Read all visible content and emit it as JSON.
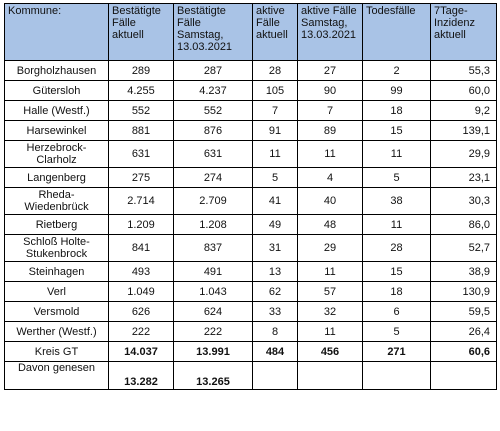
{
  "headers": [
    "Kommune:",
    "Bestätigte Fälle aktuell",
    "Bestätigte Fälle Samstag, 13.03.2021",
    "aktive Fälle aktuell",
    "aktive Fälle Samstag, 13.03.2021",
    "Todesfälle",
    "7Tage-Inzidenz aktuell"
  ],
  "rows": [
    {
      "kommune": "Borgholzhausen",
      "best_akt": "289",
      "best_sa": "287",
      "aktiv_akt": "28",
      "aktiv_sa": "27",
      "tod": "2",
      "inzidenz": "55,3"
    },
    {
      "kommune": "Gütersloh",
      "best_akt": "4.255",
      "best_sa": "4.237",
      "aktiv_akt": "105",
      "aktiv_sa": "90",
      "tod": "99",
      "inzidenz": "60,0"
    },
    {
      "kommune": "Halle (Westf.)",
      "best_akt": "552",
      "best_sa": "552",
      "aktiv_akt": "7",
      "aktiv_sa": "7",
      "tod": "18",
      "inzidenz": "9,2"
    },
    {
      "kommune": "Harsewinkel",
      "best_akt": "881",
      "best_sa": "876",
      "aktiv_akt": "91",
      "aktiv_sa": "89",
      "tod": "15",
      "inzidenz": "139,1"
    },
    {
      "kommune": "Herzebrock-Clarholz",
      "best_akt": "631",
      "best_sa": "631",
      "aktiv_akt": "11",
      "aktiv_sa": "11",
      "tod": "11",
      "inzidenz": "29,9"
    },
    {
      "kommune": "Langenberg",
      "best_akt": "275",
      "best_sa": "274",
      "aktiv_akt": "5",
      "aktiv_sa": "4",
      "tod": "5",
      "inzidenz": "23,1"
    },
    {
      "kommune": "Rheda-Wiedenbrück",
      "best_akt": "2.714",
      "best_sa": "2.709",
      "aktiv_akt": "41",
      "aktiv_sa": "40",
      "tod": "38",
      "inzidenz": "30,3"
    },
    {
      "kommune": "Rietberg",
      "best_akt": "1.209",
      "best_sa": "1.208",
      "aktiv_akt": "49",
      "aktiv_sa": "48",
      "tod": "11",
      "inzidenz": "86,0"
    },
    {
      "kommune": "Schloß Holte-Stukenbrock",
      "best_akt": "841",
      "best_sa": "837",
      "aktiv_akt": "31",
      "aktiv_sa": "29",
      "tod": "28",
      "inzidenz": "52,7"
    },
    {
      "kommune": "Steinhagen",
      "best_akt": "493",
      "best_sa": "491",
      "aktiv_akt": "13",
      "aktiv_sa": "11",
      "tod": "15",
      "inzidenz": "38,9"
    },
    {
      "kommune": "Verl",
      "best_akt": "1.049",
      "best_sa": "1.043",
      "aktiv_akt": "62",
      "aktiv_sa": "57",
      "tod": "18",
      "inzidenz": "130,9"
    },
    {
      "kommune": "Versmold",
      "best_akt": "626",
      "best_sa": "624",
      "aktiv_akt": "33",
      "aktiv_sa": "32",
      "tod": "6",
      "inzidenz": "59,5"
    },
    {
      "kommune": "Werther (Westf.)",
      "best_akt": "222",
      "best_sa": "222",
      "aktiv_akt": "8",
      "aktiv_sa": "11",
      "tod": "5",
      "inzidenz": "26,4"
    }
  ],
  "total": {
    "kommune": "Kreis GT",
    "best_akt": "14.037",
    "best_sa": "13.991",
    "aktiv_akt": "484",
    "aktiv_sa": "456",
    "tod": "271",
    "inzidenz": "60,6"
  },
  "recovered": {
    "label": "Davon genesen",
    "akt": "13.282",
    "sa": "13.265"
  }
}
